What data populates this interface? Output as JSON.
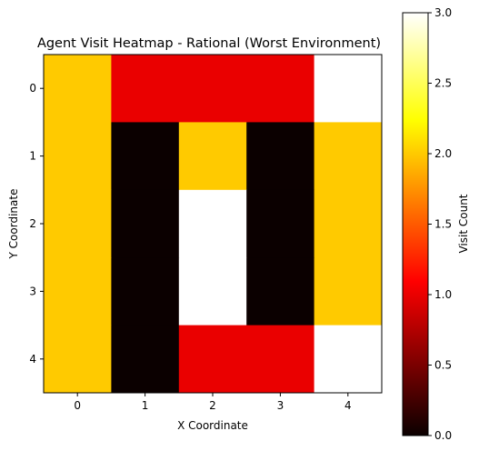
{
  "chart_data": {
    "type": "heatmap",
    "title": "Agent Visit Heatmap - Rational (Worst Environment)",
    "xlabel": "X Coordinate",
    "ylabel": "Y Coordinate",
    "x": [
      0,
      1,
      2,
      3,
      4
    ],
    "y": [
      0,
      1,
      2,
      3,
      4
    ],
    "x_tick_labels": [
      "0",
      "1",
      "2",
      "3",
      "4"
    ],
    "y_tick_labels": [
      "0",
      "1",
      "2",
      "3",
      "4"
    ],
    "values": [
      [
        2,
        1,
        1,
        1,
        3
      ],
      [
        2,
        0,
        2,
        0,
        2
      ],
      [
        2,
        0,
        3,
        0,
        2
      ],
      [
        2,
        0,
        3,
        0,
        2
      ],
      [
        2,
        0,
        1,
        1,
        3
      ]
    ],
    "colormap": "hot",
    "vmin": 0,
    "vmax": 3,
    "y_axis_inverted": true,
    "colorbar": {
      "label": "Visit Count",
      "ticks": [
        0.0,
        0.5,
        1.0,
        1.5,
        2.0,
        2.5,
        3.0
      ],
      "tick_labels": [
        "0.0",
        "0.5",
        "1.0",
        "1.5",
        "2.0",
        "2.5",
        "3.0"
      ],
      "placement": "right"
    },
    "grid": false
  }
}
